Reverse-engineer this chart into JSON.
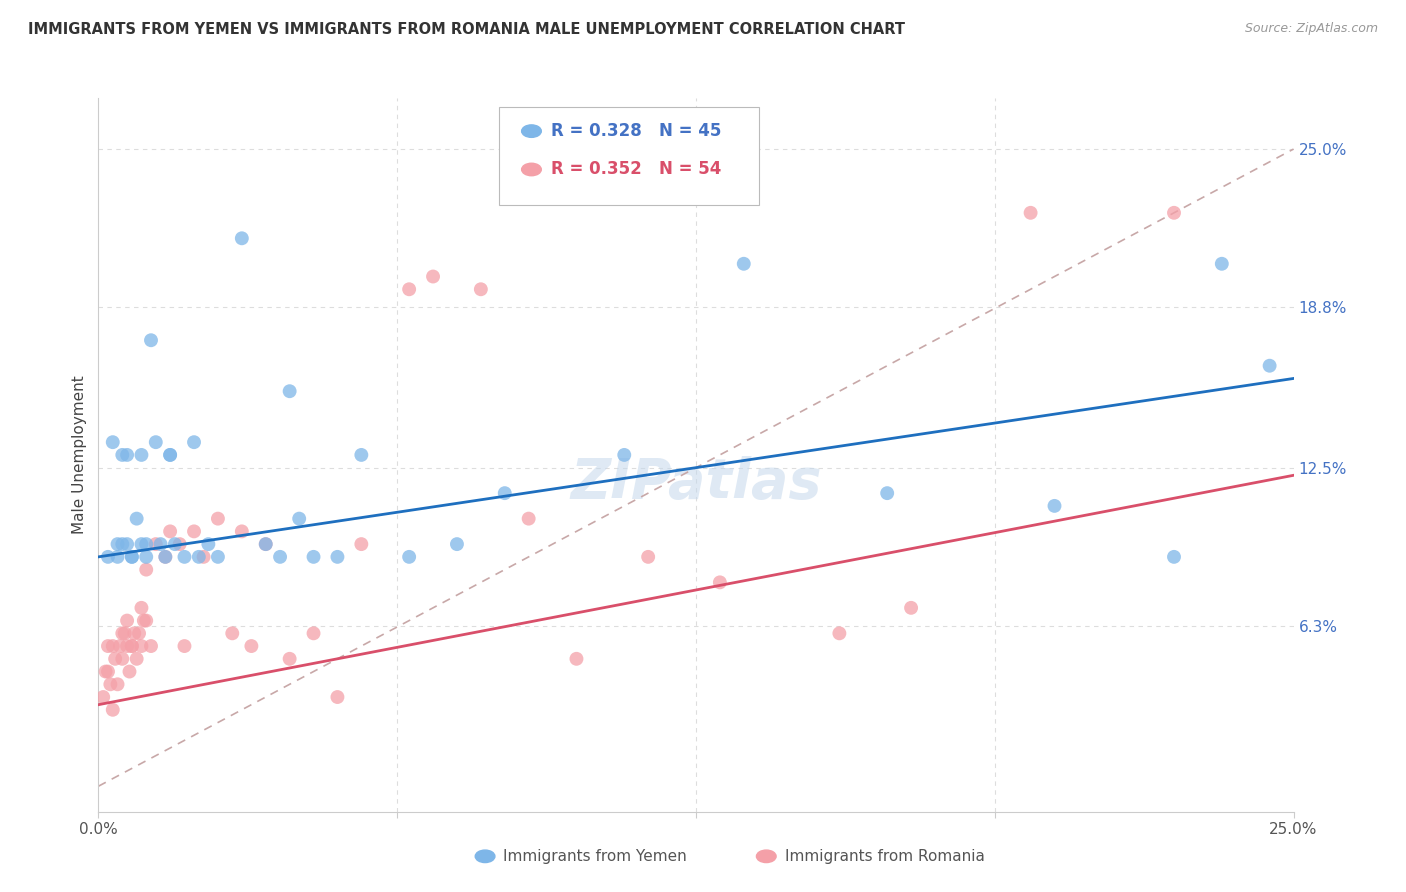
{
  "title": "IMMIGRANTS FROM YEMEN VS IMMIGRANTS FROM ROMANIA MALE UNEMPLOYMENT CORRELATION CHART",
  "source": "Source: ZipAtlas.com",
  "ylabel": "Male Unemployment",
  "ytick_labels": [
    "6.3%",
    "12.5%",
    "18.8%",
    "25.0%"
  ],
  "ytick_values": [
    6.3,
    12.5,
    18.8,
    25.0
  ],
  "xlim": [
    0.0,
    25.0
  ],
  "ylim": [
    -1.0,
    27.0
  ],
  "legend1_R": "0.328",
  "legend1_N": "45",
  "legend2_R": "0.352",
  "legend2_N": "54",
  "yemen_color": "#7EB6E8",
  "romania_color": "#F4A0A8",
  "yemen_line_color": "#1E6FBF",
  "romania_line_color": "#D94F6A",
  "diagonal_color": "#C8A8A8",
  "background_color": "#FFFFFF",
  "yemen_intercept": 9.0,
  "yemen_slope": 0.28,
  "romania_intercept": 3.2,
  "romania_slope": 0.36,
  "yemen_x": [
    0.2,
    0.3,
    0.4,
    0.5,
    0.6,
    0.6,
    0.7,
    0.8,
    0.9,
    0.9,
    1.0,
    1.1,
    1.2,
    1.3,
    1.4,
    1.5,
    1.6,
    1.8,
    2.0,
    2.1,
    2.3,
    2.5,
    3.0,
    3.5,
    3.8,
    4.0,
    4.2,
    4.5,
    5.0,
    5.5,
    6.5,
    7.5,
    8.5,
    11.0,
    13.5,
    16.5,
    20.0,
    22.5,
    23.5,
    24.5,
    0.4,
    0.5,
    0.7,
    1.0,
    1.5
  ],
  "yemen_y": [
    9.0,
    13.5,
    9.5,
    13.0,
    13.0,
    9.5,
    9.0,
    10.5,
    9.5,
    13.0,
    9.0,
    17.5,
    13.5,
    9.5,
    9.0,
    13.0,
    9.5,
    9.0,
    13.5,
    9.0,
    9.5,
    9.0,
    21.5,
    9.5,
    9.0,
    15.5,
    10.5,
    9.0,
    9.0,
    13.0,
    9.0,
    9.5,
    11.5,
    13.0,
    20.5,
    11.5,
    11.0,
    9.0,
    20.5,
    16.5,
    9.0,
    9.5,
    9.0,
    9.5,
    13.0
  ],
  "romania_x": [
    0.1,
    0.15,
    0.2,
    0.25,
    0.3,
    0.35,
    0.4,
    0.45,
    0.5,
    0.55,
    0.6,
    0.65,
    0.7,
    0.75,
    0.8,
    0.85,
    0.9,
    0.95,
    1.0,
    1.1,
    1.2,
    1.4,
    1.5,
    1.7,
    1.8,
    2.0,
    2.2,
    2.5,
    2.8,
    3.0,
    3.2,
    3.5,
    4.0,
    4.5,
    5.0,
    5.5,
    6.5,
    7.0,
    8.0,
    9.0,
    10.0,
    11.5,
    13.0,
    15.5,
    17.0,
    19.5,
    22.5,
    0.2,
    0.3,
    0.5,
    0.6,
    0.7,
    0.9,
    1.0
  ],
  "romania_y": [
    3.5,
    4.5,
    5.5,
    4.0,
    3.0,
    5.0,
    4.0,
    5.5,
    5.0,
    6.0,
    5.5,
    4.5,
    5.5,
    6.0,
    5.0,
    6.0,
    5.5,
    6.5,
    6.5,
    5.5,
    9.5,
    9.0,
    10.0,
    9.5,
    5.5,
    10.0,
    9.0,
    10.5,
    6.0,
    10.0,
    5.5,
    9.5,
    5.0,
    6.0,
    3.5,
    9.5,
    19.5,
    20.0,
    19.5,
    10.5,
    5.0,
    9.0,
    8.0,
    6.0,
    7.0,
    22.5,
    22.5,
    4.5,
    5.5,
    6.0,
    6.5,
    5.5,
    7.0,
    8.5
  ]
}
